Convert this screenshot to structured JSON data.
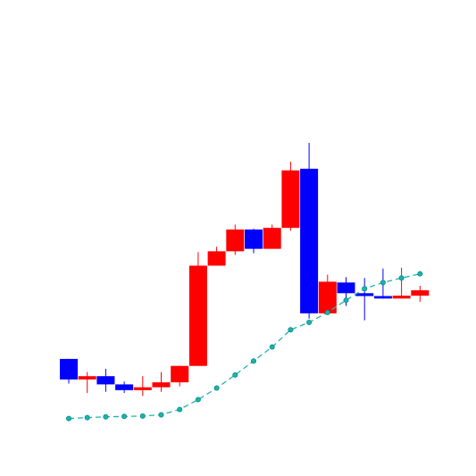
{
  "chart_data": {
    "type": "candlestick",
    "title": "",
    "xlabel": "",
    "ylabel": "",
    "axes_visible": false,
    "grid": false,
    "legend": "none",
    "ylim": [
      0,
      100
    ],
    "colors": {
      "down": "#0000ff",
      "up": "#ff0000",
      "overlay_line": "#20b2aa",
      "overlay_marker": "#008b8b"
    },
    "candles": [
      {
        "open": 23.5,
        "close": 18.5,
        "high": 23.5,
        "low": 17.5
      },
      {
        "open": 18.5,
        "close": 19.3,
        "high": 20.3,
        "low": 15.2
      },
      {
        "open": 19.3,
        "close": 17.3,
        "high": 21.1,
        "low": 15.5
      },
      {
        "open": 17.3,
        "close": 15.9,
        "high": 18.0,
        "low": 15.2
      },
      {
        "open": 15.9,
        "close": 16.6,
        "high": 19.3,
        "low": 14.5
      },
      {
        "open": 16.6,
        "close": 17.8,
        "high": 20.3,
        "low": 15.5
      },
      {
        "open": 17.8,
        "close": 21.8,
        "high": 21.8,
        "low": 16.8
      },
      {
        "open": 21.8,
        "close": 46.2,
        "high": 49.5,
        "low": 21.8
      },
      {
        "open": 46.2,
        "close": 49.7,
        "high": 50.8,
        "low": 46.2
      },
      {
        "open": 49.7,
        "close": 55.0,
        "high": 56.2,
        "low": 48.8
      },
      {
        "open": 55.0,
        "close": 50.3,
        "high": 55.2,
        "low": 49.2
      },
      {
        "open": 50.3,
        "close": 55.4,
        "high": 56.2,
        "low": 50.3
      },
      {
        "open": 55.4,
        "close": 69.4,
        "high": 71.5,
        "low": 54.7
      },
      {
        "open": 69.8,
        "close": 34.6,
        "high": 76.1,
        "low": 33.3
      },
      {
        "open": 34.6,
        "close": 42.3,
        "high": 44.0,
        "low": 34.6
      },
      {
        "open": 42.1,
        "close": 39.5,
        "high": 43.4,
        "low": 36.4
      },
      {
        "open": 39.5,
        "close": 38.8,
        "high": 43.2,
        "low": 32.9
      },
      {
        "open": 38.8,
        "close": 38.2,
        "high": 45.5,
        "low": 38.2
      },
      {
        "open": 38.2,
        "close": 38.9,
        "high": 45.7,
        "low": 38.2
      },
      {
        "open": 38.9,
        "close": 40.2,
        "high": 41.3,
        "low": 37.4
      }
    ],
    "overlay_series": {
      "values": [
        9.0,
        9.2,
        9.4,
        9.5,
        9.6,
        9.9,
        11.2,
        13.6,
        16.4,
        19.6,
        23.0,
        26.4,
        30.6,
        32.4,
        34.8,
        37.8,
        40.6,
        42.1,
        43.2,
        44.2
      ]
    }
  }
}
